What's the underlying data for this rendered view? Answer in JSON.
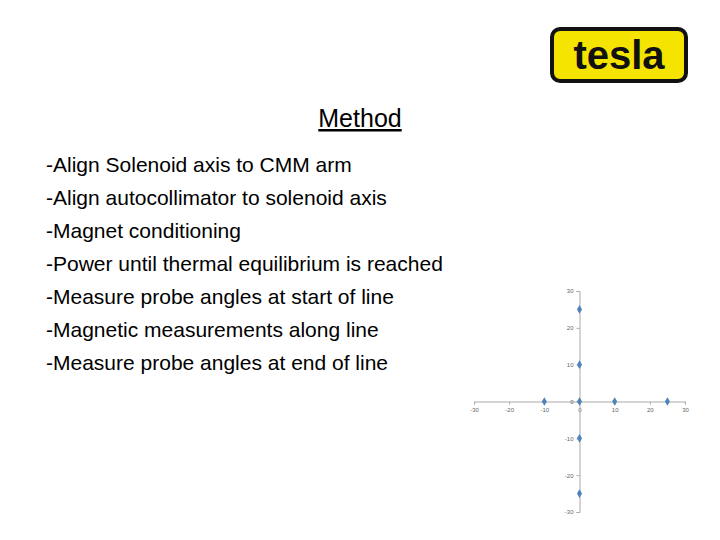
{
  "logo": "tesla",
  "title": "Method",
  "bullets": [
    "-Align Solenoid axis to CMM arm",
    "-Align autocollimator to solenoid axis",
    "-Magnet conditioning",
    "-Power until thermal equilibrium is reached",
    "-Measure probe angles at start of line",
    "-Magnetic measurements along line",
    "-Measure probe angles at end of line"
  ],
  "chart_data": {
    "type": "scatter",
    "x": [
      -10,
      0,
      10,
      25,
      0,
      0,
      0,
      0
    ],
    "values": [
      0,
      0,
      0,
      0,
      25,
      10,
      -10,
      -25
    ],
    "color": "#4f81bd",
    "marker": "diamond",
    "xlim": [
      -30,
      30
    ],
    "ylim": [
      -30,
      30
    ],
    "xticks": [
      -30,
      -20,
      -10,
      0,
      10,
      20,
      30
    ],
    "yticks": [
      -30,
      -20,
      -10,
      0,
      10,
      20,
      30
    ],
    "grid": false
  }
}
